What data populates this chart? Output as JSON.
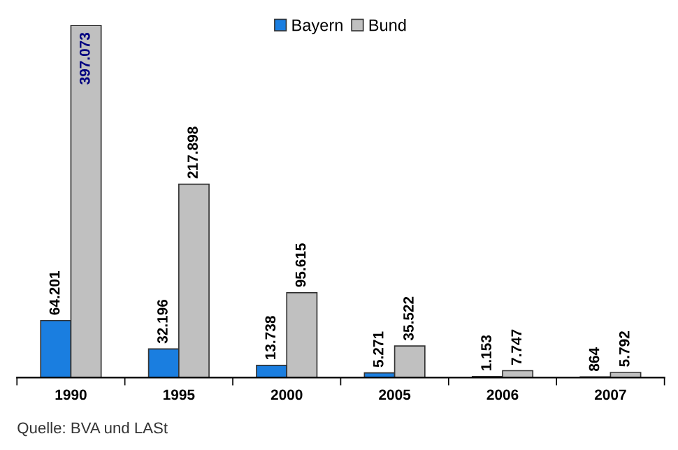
{
  "chart_data": {
    "type": "bar",
    "categories": [
      "1990",
      "1995",
      "2000",
      "2005",
      "2006",
      "2007"
    ],
    "series": [
      {
        "name": "Bayern",
        "color": "#1a7ee0",
        "values": [
          64201,
          32196,
          13738,
          5271,
          1153,
          864
        ],
        "value_labels": [
          "64.201",
          "32.196",
          "13.738",
          "5.271",
          "1.153",
          "864"
        ]
      },
      {
        "name": "Bund",
        "color": "#c0c0c0",
        "values": [
          397073,
          217898,
          95615,
          35522,
          7747,
          5792
        ],
        "value_labels": [
          "397.073",
          "217.898",
          "95.615",
          "35.522",
          "7.747",
          "5.792"
        ]
      }
    ],
    "legend": "top",
    "grid": false,
    "annotations": [
      "Quelle: BVA und LASt"
    ]
  }
}
